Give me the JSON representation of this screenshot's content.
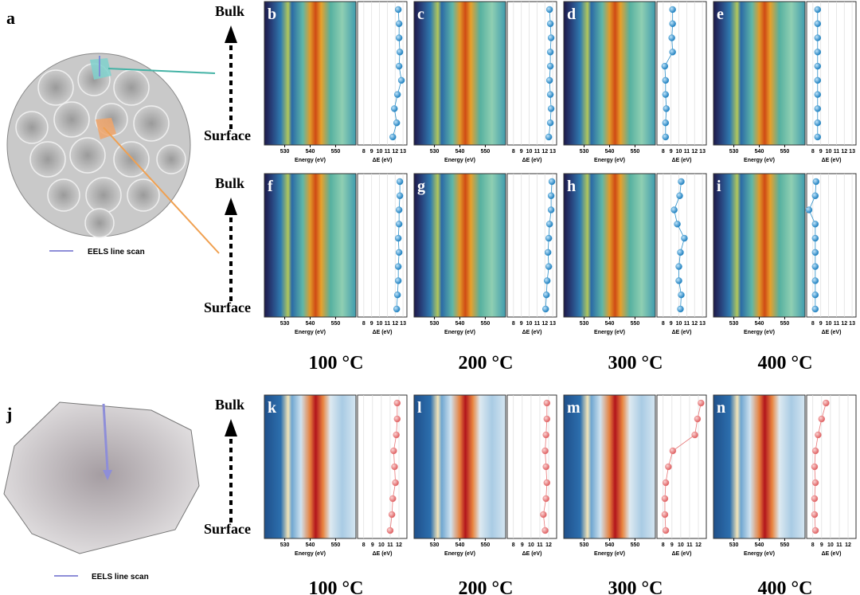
{
  "figure": {
    "panel_a": "a",
    "panel_j": "j",
    "bulk": "Bulk",
    "surface": "Surface",
    "legend": "EELS line scan",
    "temperatures": [
      "100 °C",
      "200 °C",
      "300 °C",
      "400 °C"
    ]
  },
  "chart_data": [
    {
      "type": "heatmap-profile",
      "label": "b",
      "colormap": "teal",
      "heatmap": {
        "xlabel": "Energy (eV)",
        "xlim": [
          522,
          558
        ],
        "xticks": [
          530,
          540,
          550
        ]
      },
      "profile": {
        "xlabel": "ΔE (eV)",
        "xlim": [
          7.2,
          13.5
        ],
        "xticks": [
          8,
          9,
          10,
          11,
          12,
          13
        ],
        "color": "#2b8fc9",
        "values": [
          12.4,
          12.5,
          12.5,
          12.6,
          12.5,
          12.8,
          12.3,
          11.9,
          12.2,
          11.7
        ]
      }
    },
    {
      "type": "heatmap-profile",
      "label": "c",
      "colormap": "teal",
      "heatmap": {
        "xlabel": "Energy (eV)",
        "xlim": [
          522,
          558
        ],
        "xticks": [
          530,
          540,
          550
        ]
      },
      "profile": {
        "xlabel": "ΔE (eV)",
        "xlim": [
          7.2,
          13.5
        ],
        "xticks": [
          8,
          9,
          10,
          11,
          12,
          13
        ],
        "color": "#2b8fc9",
        "values": [
          12.6,
          12.7,
          12.8,
          12.7,
          12.7,
          12.6,
          12.7,
          12.8,
          12.7,
          12.5
        ]
      }
    },
    {
      "type": "heatmap-profile",
      "label": "d",
      "colormap": "teal",
      "heatmap": {
        "xlabel": "Energy (eV)",
        "xlim": [
          522,
          558
        ],
        "xticks": [
          530,
          540,
          550
        ]
      },
      "profile": {
        "xlabel": "ΔE (eV)",
        "xlim": [
          7.2,
          13.5
        ],
        "xticks": [
          8,
          9,
          10,
          11,
          12,
          13
        ],
        "color": "#2b8fc9",
        "values": [
          9.2,
          9.2,
          9.1,
          9.2,
          8.2,
          8.3,
          8.3,
          8.4,
          8.3,
          8.3
        ]
      }
    },
    {
      "type": "heatmap-profile",
      "label": "e",
      "colormap": "teal",
      "heatmap": {
        "xlabel": "Energy (eV)",
        "xlim": [
          522,
          558
        ],
        "xticks": [
          530,
          540,
          550
        ]
      },
      "profile": {
        "xlabel": "ΔE (eV)",
        "xlim": [
          7.2,
          13.5
        ],
        "xticks": [
          8,
          9,
          10,
          11,
          12,
          13
        ],
        "color": "#2b8fc9",
        "values": [
          8.6,
          8.6,
          8.6,
          8.6,
          8.6,
          8.6,
          8.6,
          8.6,
          8.6,
          8.6
        ]
      }
    },
    {
      "type": "heatmap-profile",
      "label": "f",
      "colormap": "teal",
      "heatmap": {
        "xlabel": "Energy (eV)",
        "xlim": [
          522,
          558
        ],
        "xticks": [
          530,
          540,
          550
        ]
      },
      "profile": {
        "xlabel": "ΔE (eV)",
        "xlim": [
          7.2,
          13.5
        ],
        "xticks": [
          8,
          9,
          10,
          11,
          12,
          13
        ],
        "color": "#2b8fc9",
        "values": [
          12.6,
          12.6,
          12.5,
          12.5,
          12.4,
          12.5,
          12.4,
          12.4,
          12.3,
          12.2
        ]
      }
    },
    {
      "type": "heatmap-profile",
      "label": "g",
      "colormap": "teal",
      "heatmap": {
        "xlabel": "Energy (eV)",
        "xlim": [
          522,
          558
        ],
        "xticks": [
          530,
          540,
          550
        ]
      },
      "profile": {
        "xlabel": "ΔE (eV)",
        "xlim": [
          7.2,
          13.5
        ],
        "xticks": [
          8,
          9,
          10,
          11,
          12,
          13
        ],
        "color": "#2b8fc9",
        "values": [
          12.9,
          12.8,
          12.8,
          12.6,
          12.5,
          12.4,
          12.5,
          12.3,
          12.2,
          12.1
        ]
      }
    },
    {
      "type": "heatmap-profile",
      "label": "h",
      "colormap": "teal",
      "heatmap": {
        "xlabel": "Energy (eV)",
        "xlim": [
          522,
          558
        ],
        "xticks": [
          530,
          540,
          550
        ]
      },
      "profile": {
        "xlabel": "ΔE (eV)",
        "xlim": [
          7.2,
          13.5
        ],
        "xticks": [
          8,
          9,
          10,
          11,
          12,
          13
        ],
        "color": "#2b8fc9",
        "values": [
          10.3,
          10.1,
          9.4,
          9.8,
          10.7,
          10.2,
          10.0,
          10.0,
          10.3,
          10.2
        ]
      }
    },
    {
      "type": "heatmap-profile",
      "label": "i",
      "colormap": "teal",
      "heatmap": {
        "xlabel": "Energy (eV)",
        "xlim": [
          522,
          558
        ],
        "xticks": [
          530,
          540,
          550
        ]
      },
      "profile": {
        "xlabel": "ΔE (eV)",
        "xlim": [
          7.2,
          13.5
        ],
        "xticks": [
          8,
          9,
          10,
          11,
          12,
          13
        ],
        "color": "#2b8fc9",
        "values": [
          8.4,
          8.3,
          7.5,
          8.3,
          8.3,
          8.3,
          8.3,
          8.3,
          8.3,
          8.3
        ]
      }
    },
    {
      "type": "heatmap-profile",
      "label": "k",
      "colormap": "rdbu",
      "heatmap": {
        "xlabel": "Energy (eV)",
        "xlim": [
          522,
          558
        ],
        "xticks": [
          530,
          540,
          550
        ]
      },
      "profile": {
        "xlabel": "ΔE (eV)",
        "xlim": [
          7.3,
          12.9
        ],
        "xticks": [
          8,
          9,
          10,
          11,
          12
        ],
        "color": "#e8797a",
        "values": [
          11.8,
          11.8,
          11.7,
          11.4,
          11.5,
          11.6,
          11.3,
          11.2,
          11.0
        ]
      }
    },
    {
      "type": "heatmap-profile",
      "label": "l",
      "colormap": "rdbu",
      "heatmap": {
        "xlabel": "Energy (eV)",
        "xlim": [
          522,
          558
        ],
        "xticks": [
          530,
          540,
          550
        ]
      },
      "profile": {
        "xlabel": "ΔE (eV)",
        "xlim": [
          7.3,
          12.9
        ],
        "xticks": [
          8,
          9,
          10,
          11,
          12
        ],
        "color": "#e8797a",
        "values": [
          11.8,
          11.8,
          11.7,
          11.6,
          11.7,
          11.8,
          11.7,
          11.4,
          11.6
        ]
      }
    },
    {
      "type": "heatmap-profile",
      "label": "m",
      "colormap": "rdbu",
      "heatmap": {
        "xlabel": "Energy (eV)",
        "xlim": [
          522,
          558
        ],
        "xticks": [
          530,
          540,
          550
        ]
      },
      "profile": {
        "xlabel": "ΔE (eV)",
        "xlim": [
          7.3,
          12.9
        ],
        "xticks": [
          8,
          9,
          10,
          11,
          12
        ],
        "color": "#e8797a",
        "values": [
          12.3,
          11.9,
          11.6,
          9.1,
          8.6,
          8.3,
          8.2,
          8.2,
          8.3
        ]
      }
    },
    {
      "type": "heatmap-profile",
      "label": "n",
      "colormap": "rdbu",
      "heatmap": {
        "xlabel": "Energy (eV)",
        "xlim": [
          522,
          558
        ],
        "xticks": [
          530,
          540,
          550
        ]
      },
      "profile": {
        "xlabel": "ΔE (eV)",
        "xlim": [
          7.3,
          12.9
        ],
        "xticks": [
          8,
          9,
          10,
          11,
          12
        ],
        "color": "#e8797a",
        "values": [
          9.5,
          9.0,
          8.6,
          8.3,
          8.2,
          8.3,
          8.2,
          8.2,
          8.3
        ]
      }
    }
  ]
}
